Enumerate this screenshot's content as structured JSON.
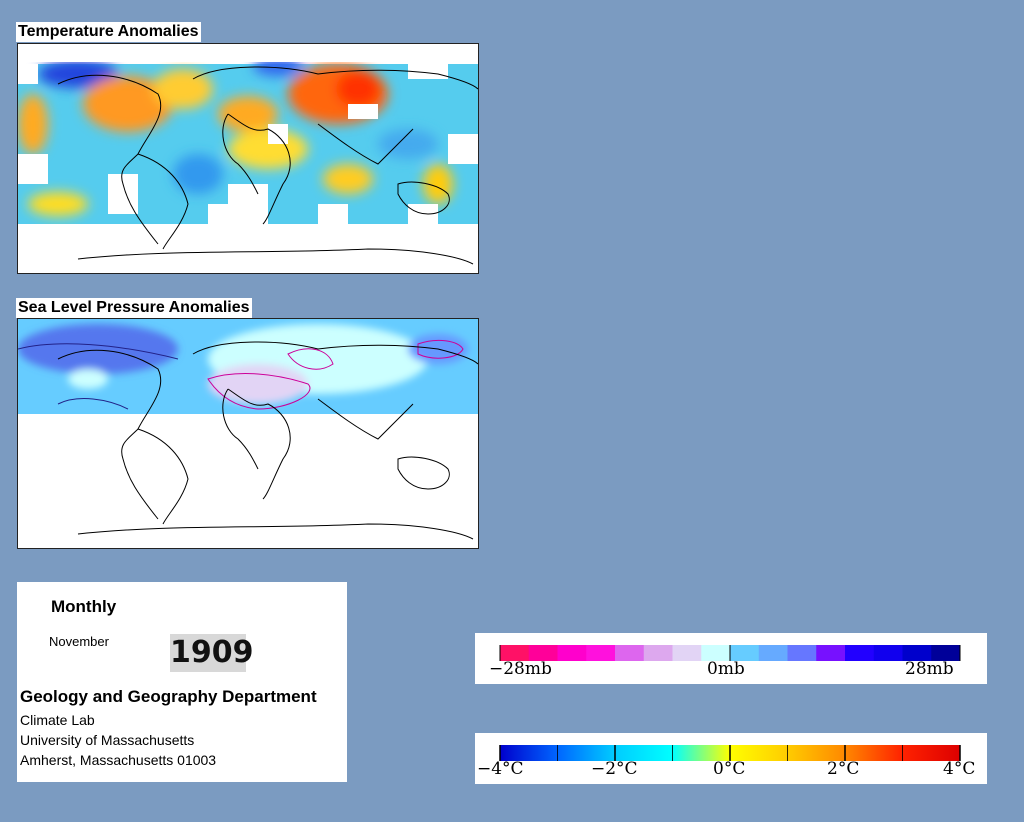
{
  "panels": {
    "temperature_title": "Temperature Anomalies",
    "pressure_title": "Sea Level Pressure Anomalies"
  },
  "info": {
    "frequency": "Monthly",
    "month": "November",
    "year": "1909",
    "department": "Geology and Geography Department",
    "lab": "Climate Lab",
    "university": "University of Massachusetts",
    "address": "Amherst, Massachusetts 01003"
  },
  "pressure_legend": {
    "labels": [
      "−28mb",
      "0mb",
      "28mb"
    ],
    "colors": [
      "#ff1166",
      "#ff0099",
      "#ff00cc",
      "#ff11dd",
      "#dd66ee",
      "#dda8ee",
      "#e2d4f5",
      "#ccffff",
      "#66ccff",
      "#66aaff",
      "#6677ff",
      "#7711ff",
      "#2200ff",
      "#1100ee",
      "#0000cc",
      "#000099"
    ]
  },
  "temperature_legend": {
    "labels": [
      "−4°C",
      "−2°C",
      "0°C",
      "2°C",
      "4°C"
    ],
    "gradient": [
      "#0000cc",
      "#0066ff",
      "#00ccff",
      "#00ffff",
      "#ffff00",
      "#ffcc00",
      "#ff8800",
      "#ff2200",
      "#dd0000"
    ]
  },
  "colors": {
    "background": "#7b9bc1",
    "warm": "#ff8800",
    "cold": "#3399ff"
  }
}
